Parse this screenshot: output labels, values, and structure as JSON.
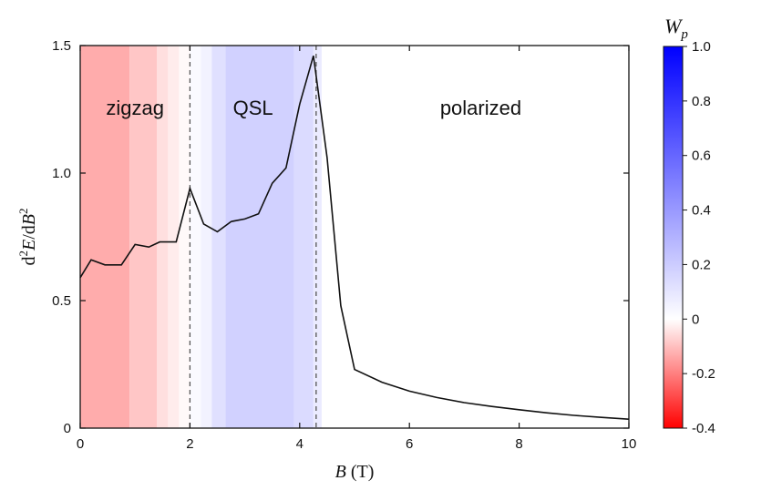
{
  "chart_data": {
    "type": "line",
    "xlabel_italic": "B",
    "xlabel_rest": " (T)",
    "ylabel_parts": [
      "d",
      "2",
      "E",
      "/d",
      "B",
      "2"
    ],
    "xlim": [
      0,
      10
    ],
    "ylim": [
      0,
      1.5
    ],
    "xticks": [
      "0",
      "2",
      "4",
      "6",
      "8",
      "10"
    ],
    "xtick_values": [
      0,
      2,
      4,
      6,
      8,
      10
    ],
    "yticks": [
      "0",
      "0.5",
      "1.0",
      "1.5"
    ],
    "ytick_values": [
      0,
      0.5,
      1.0,
      1.5
    ],
    "grid": false,
    "series": [
      {
        "color": "#111111",
        "x": [
          0,
          0.2,
          0.45,
          0.75,
          1.0,
          1.25,
          1.45,
          1.75,
          2.0,
          2.25,
          2.5,
          2.75,
          3.0,
          3.25,
          3.5,
          3.75,
          4.0,
          4.25,
          4.5,
          4.75,
          5.0,
          5.5,
          6.0,
          6.5,
          7.0,
          7.5,
          8.0,
          8.5,
          9.0,
          9.5,
          10.0
        ],
        "y": [
          0.59,
          0.66,
          0.64,
          0.64,
          0.72,
          0.71,
          0.73,
          0.73,
          0.94,
          0.8,
          0.77,
          0.81,
          0.82,
          0.84,
          0.96,
          1.02,
          1.27,
          1.46,
          1.06,
          0.48,
          0.23,
          0.18,
          0.145,
          0.12,
          0.1,
          0.085,
          0.072,
          0.06,
          0.05,
          0.042,
          0.035
        ]
      }
    ],
    "dashed_lines_x": [
      2.0,
      4.3
    ],
    "regions": [
      {
        "label": "zigzag",
        "label_x": 1.0
      },
      {
        "label": "QSL",
        "label_x": 3.15
      },
      {
        "label": "polarized",
        "label_x": 7.3
      }
    ],
    "background_bands": [
      {
        "x0": 0.0,
        "x1": 0.9,
        "w": -0.13
      },
      {
        "x0": 0.9,
        "x1": 1.4,
        "w": -0.09
      },
      {
        "x0": 1.4,
        "x1": 1.6,
        "w": -0.05
      },
      {
        "x0": 1.6,
        "x1": 1.8,
        "w": -0.03
      },
      {
        "x0": 1.8,
        "x1": 2.0,
        "w": -0.01
      },
      {
        "x0": 2.0,
        "x1": 2.2,
        "w": 0.02
      },
      {
        "x0": 2.2,
        "x1": 2.4,
        "w": 0.05
      },
      {
        "x0": 2.4,
        "x1": 2.65,
        "w": 0.12
      },
      {
        "x0": 2.65,
        "x1": 3.9,
        "w": 0.18
      },
      {
        "x0": 3.9,
        "x1": 4.25,
        "w": 0.14
      },
      {
        "x0": 4.25,
        "x1": 4.4,
        "w": 0.08
      }
    ],
    "colorbar": {
      "label_main": "W",
      "label_sub": "p",
      "range": [
        -0.4,
        1.0
      ],
      "ticks": [
        "1.0",
        "0.8",
        "0.6",
        "0.4",
        "0.2",
        "0",
        "-0.2",
        "-0.4"
      ],
      "tick_values": [
        1.0,
        0.8,
        0.6,
        0.4,
        0.2,
        0,
        -0.2,
        -0.4
      ],
      "color_min": "#ff0000",
      "color_mid": "#ffffff",
      "color_max": "#0000ff"
    }
  }
}
